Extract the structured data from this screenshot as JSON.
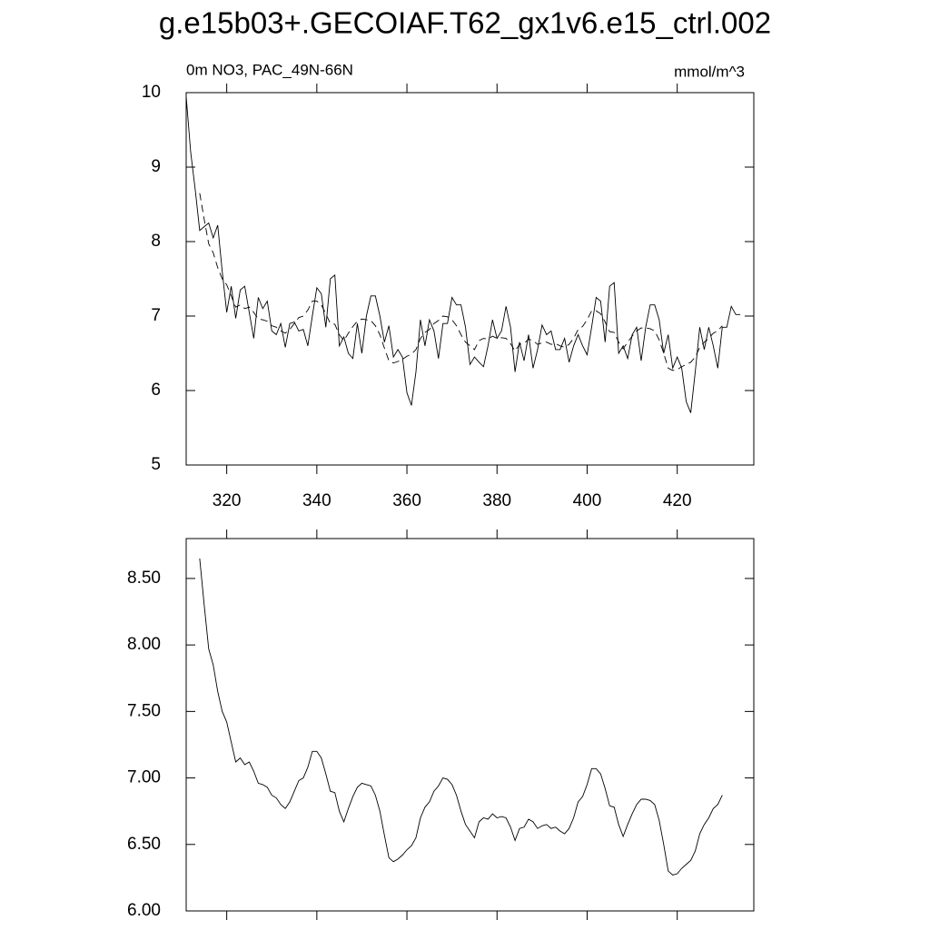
{
  "chart_data": [
    {
      "type": "line",
      "title": "g.e15b03+.GECOIAF.T62_gx1v6.e15_ctrl.002",
      "subtitle": "0m NO3, PAC_49N-66N",
      "units": "mmol/m^3",
      "xlim": [
        311,
        437
      ],
      "xticks": [
        320,
        340,
        360,
        380,
        400,
        420
      ],
      "ylim": [
        5,
        10
      ],
      "yticks": [
        5,
        6,
        7,
        8,
        9,
        10
      ],
      "series": [
        {
          "color": "#000000",
          "dash": "solid",
          "x": [
            311,
            312,
            313,
            314,
            315,
            316,
            317,
            318,
            319,
            320,
            321,
            322,
            323,
            324,
            325,
            326,
            327,
            328,
            329,
            330,
            331,
            332,
            333,
            334,
            335,
            336,
            337,
            338,
            339,
            340,
            341,
            342,
            343,
            344,
            345,
            346,
            347,
            348,
            349,
            350,
            351,
            352,
            353,
            354,
            355,
            356,
            357,
            358,
            359,
            360,
            361,
            362,
            363,
            364,
            365,
            366,
            367,
            368,
            369,
            370,
            371,
            372,
            373,
            374,
            375,
            376,
            377,
            378,
            379,
            380,
            381,
            382,
            383,
            384,
            385,
            386,
            387,
            388,
            389,
            390,
            391,
            392,
            393,
            394,
            395,
            396,
            397,
            398,
            399,
            400,
            401,
            402,
            403,
            404,
            405,
            406,
            407,
            408,
            409,
            410,
            411,
            412,
            413,
            414,
            415,
            416,
            417,
            418,
            419,
            420,
            421,
            422,
            423,
            424,
            425,
            426,
            427,
            428,
            429,
            430,
            431,
            432,
            433,
            434
          ],
          "values": [
            9.95,
            9.2,
            8.7,
            8.15,
            8.2,
            8.25,
            8.05,
            8.22,
            7.6,
            7.05,
            7.4,
            6.97,
            7.35,
            7.4,
            7.05,
            6.7,
            7.25,
            7.1,
            7.2,
            6.8,
            6.75,
            6.9,
            6.58,
            6.9,
            6.92,
            6.8,
            6.82,
            6.6,
            7.0,
            7.38,
            7.3,
            6.85,
            7.5,
            7.55,
            6.6,
            6.72,
            6.5,
            6.43,
            6.9,
            6.5,
            7.0,
            7.27,
            7.27,
            7.0,
            6.65,
            6.87,
            6.45,
            6.55,
            6.45,
            5.97,
            5.8,
            6.25,
            6.95,
            6.6,
            6.95,
            6.8,
            6.43,
            6.9,
            6.9,
            7.25,
            7.15,
            7.15,
            6.85,
            6.35,
            6.45,
            6.38,
            6.32,
            6.6,
            6.95,
            6.7,
            6.8,
            7.13,
            6.85,
            6.25,
            6.65,
            6.4,
            6.75,
            6.3,
            6.55,
            6.88,
            6.75,
            6.8,
            6.55,
            6.55,
            6.7,
            6.38,
            6.6,
            6.75,
            6.6,
            6.48,
            6.85,
            7.25,
            7.2,
            6.65,
            7.4,
            7.45,
            6.5,
            6.6,
            6.43,
            6.75,
            6.85,
            6.4,
            6.85,
            7.15,
            7.15,
            6.95,
            6.5,
            6.75,
            6.3,
            6.45,
            6.3,
            5.85,
            5.7,
            6.25,
            6.85,
            6.55,
            6.85,
            6.6,
            6.3,
            6.85,
            6.85,
            7.13,
            7.02,
            7.02
          ]
        },
        {
          "color": "#000000",
          "dash": "dashed",
          "x": [
            314,
            315,
            316,
            317,
            318,
            319,
            320,
            321,
            322,
            323,
            324,
            325,
            326,
            327,
            328,
            329,
            330,
            331,
            332,
            333,
            334,
            335,
            336,
            337,
            338,
            339,
            340,
            341,
            342,
            343,
            344,
            345,
            346,
            347,
            348,
            349,
            350,
            351,
            352,
            353,
            354,
            355,
            356,
            357,
            358,
            359,
            360,
            361,
            362,
            363,
            364,
            365,
            366,
            367,
            368,
            369,
            370,
            371,
            372,
            373,
            374,
            375,
            376,
            377,
            378,
            379,
            380,
            381,
            382,
            383,
            384,
            385,
            386,
            387,
            388,
            389,
            390,
            391,
            392,
            393,
            394,
            395,
            396,
            397,
            398,
            399,
            400,
            401,
            402,
            403,
            404,
            405,
            406,
            407,
            408,
            409,
            410,
            411,
            412,
            413,
            414,
            415,
            416,
            417,
            418,
            419,
            420,
            421,
            422,
            423,
            424,
            425,
            426,
            427,
            428,
            429,
            430
          ],
          "values": [
            8.65,
            8.3,
            7.97,
            7.85,
            7.65,
            7.5,
            7.42,
            7.27,
            7.12,
            7.15,
            7.1,
            7.12,
            7.05,
            6.96,
            6.95,
            6.93,
            6.87,
            6.85,
            6.8,
            6.77,
            6.82,
            6.9,
            6.98,
            7.0,
            7.08,
            7.2,
            7.2,
            7.15,
            7.03,
            6.9,
            6.89,
            6.75,
            6.67,
            6.77,
            6.86,
            6.93,
            6.96,
            6.95,
            6.94,
            6.87,
            6.75,
            6.57,
            6.4,
            6.37,
            6.39,
            6.42,
            6.46,
            6.49,
            6.55,
            6.7,
            6.78,
            6.82,
            6.9,
            6.94,
            7.0,
            6.99,
            6.95,
            6.87,
            6.75,
            6.65,
            6.6,
            6.55,
            6.67,
            6.7,
            6.69,
            6.73,
            6.7,
            6.71,
            6.7,
            6.63,
            6.53,
            6.62,
            6.63,
            6.69,
            6.67,
            6.62,
            6.64,
            6.65,
            6.62,
            6.63,
            6.6,
            6.58,
            6.62,
            6.7,
            6.82,
            6.86,
            6.95,
            7.07,
            7.07,
            7.03,
            6.92,
            6.79,
            6.78,
            6.65,
            6.56,
            6.65,
            6.73,
            6.8,
            6.84,
            6.84,
            6.83,
            6.8,
            6.68,
            6.5,
            6.3,
            6.27,
            6.28,
            6.32,
            6.35,
            6.38,
            6.45,
            6.58,
            6.65,
            6.7,
            6.77,
            6.8,
            6.87
          ]
        }
      ]
    },
    {
      "type": "line",
      "xlim": [
        311,
        437
      ],
      "xticks": [
        320,
        340,
        360,
        380,
        400,
        420
      ],
      "ylim": [
        6,
        8.8
      ],
      "yticks": [
        {
          "value": 6,
          "label": "6.00"
        },
        {
          "value": 6.5,
          "label": "6.50"
        },
        {
          "value": 7,
          "label": "7.00"
        },
        {
          "value": 7.5,
          "label": "7.50"
        },
        {
          "value": 8,
          "label": "8.00"
        },
        {
          "value": 8.5,
          "label": "8.50"
        }
      ],
      "series": [
        {
          "color": "#000000",
          "dash": "solid",
          "x": [
            314,
            315,
            316,
            317,
            318,
            319,
            320,
            321,
            322,
            323,
            324,
            325,
            326,
            327,
            328,
            329,
            330,
            331,
            332,
            333,
            334,
            335,
            336,
            337,
            338,
            339,
            340,
            341,
            342,
            343,
            344,
            345,
            346,
            347,
            348,
            349,
            350,
            351,
            352,
            353,
            354,
            355,
            356,
            357,
            358,
            359,
            360,
            361,
            362,
            363,
            364,
            365,
            366,
            367,
            368,
            369,
            370,
            371,
            372,
            373,
            374,
            375,
            376,
            377,
            378,
            379,
            380,
            381,
            382,
            383,
            384,
            385,
            386,
            387,
            388,
            389,
            390,
            391,
            392,
            393,
            394,
            395,
            396,
            397,
            398,
            399,
            400,
            401,
            402,
            403,
            404,
            405,
            406,
            407,
            408,
            409,
            410,
            411,
            412,
            413,
            414,
            415,
            416,
            417,
            418,
            419,
            420,
            421,
            422,
            423,
            424,
            425,
            426,
            427,
            428,
            429,
            430
          ],
          "values": [
            8.65,
            8.3,
            7.97,
            7.85,
            7.65,
            7.5,
            7.42,
            7.27,
            7.12,
            7.15,
            7.1,
            7.12,
            7.05,
            6.96,
            6.95,
            6.93,
            6.87,
            6.85,
            6.8,
            6.77,
            6.82,
            6.9,
            6.98,
            7.0,
            7.08,
            7.2,
            7.2,
            7.15,
            7.03,
            6.9,
            6.89,
            6.75,
            6.67,
            6.77,
            6.86,
            6.93,
            6.96,
            6.95,
            6.94,
            6.87,
            6.75,
            6.57,
            6.4,
            6.37,
            6.39,
            6.42,
            6.46,
            6.49,
            6.55,
            6.7,
            6.78,
            6.82,
            6.9,
            6.94,
            7.0,
            6.99,
            6.95,
            6.87,
            6.75,
            6.65,
            6.6,
            6.55,
            6.67,
            6.7,
            6.69,
            6.73,
            6.7,
            6.71,
            6.7,
            6.63,
            6.53,
            6.62,
            6.63,
            6.69,
            6.67,
            6.62,
            6.64,
            6.65,
            6.62,
            6.63,
            6.6,
            6.58,
            6.62,
            6.7,
            6.82,
            6.86,
            6.95,
            7.07,
            7.07,
            7.03,
            6.92,
            6.79,
            6.78,
            6.65,
            6.56,
            6.65,
            6.73,
            6.8,
            6.84,
            6.84,
            6.83,
            6.8,
            6.68,
            6.5,
            6.3,
            6.27,
            6.28,
            6.32,
            6.35,
            6.38,
            6.45,
            6.58,
            6.65,
            6.7,
            6.77,
            6.8,
            6.87
          ]
        }
      ]
    }
  ]
}
